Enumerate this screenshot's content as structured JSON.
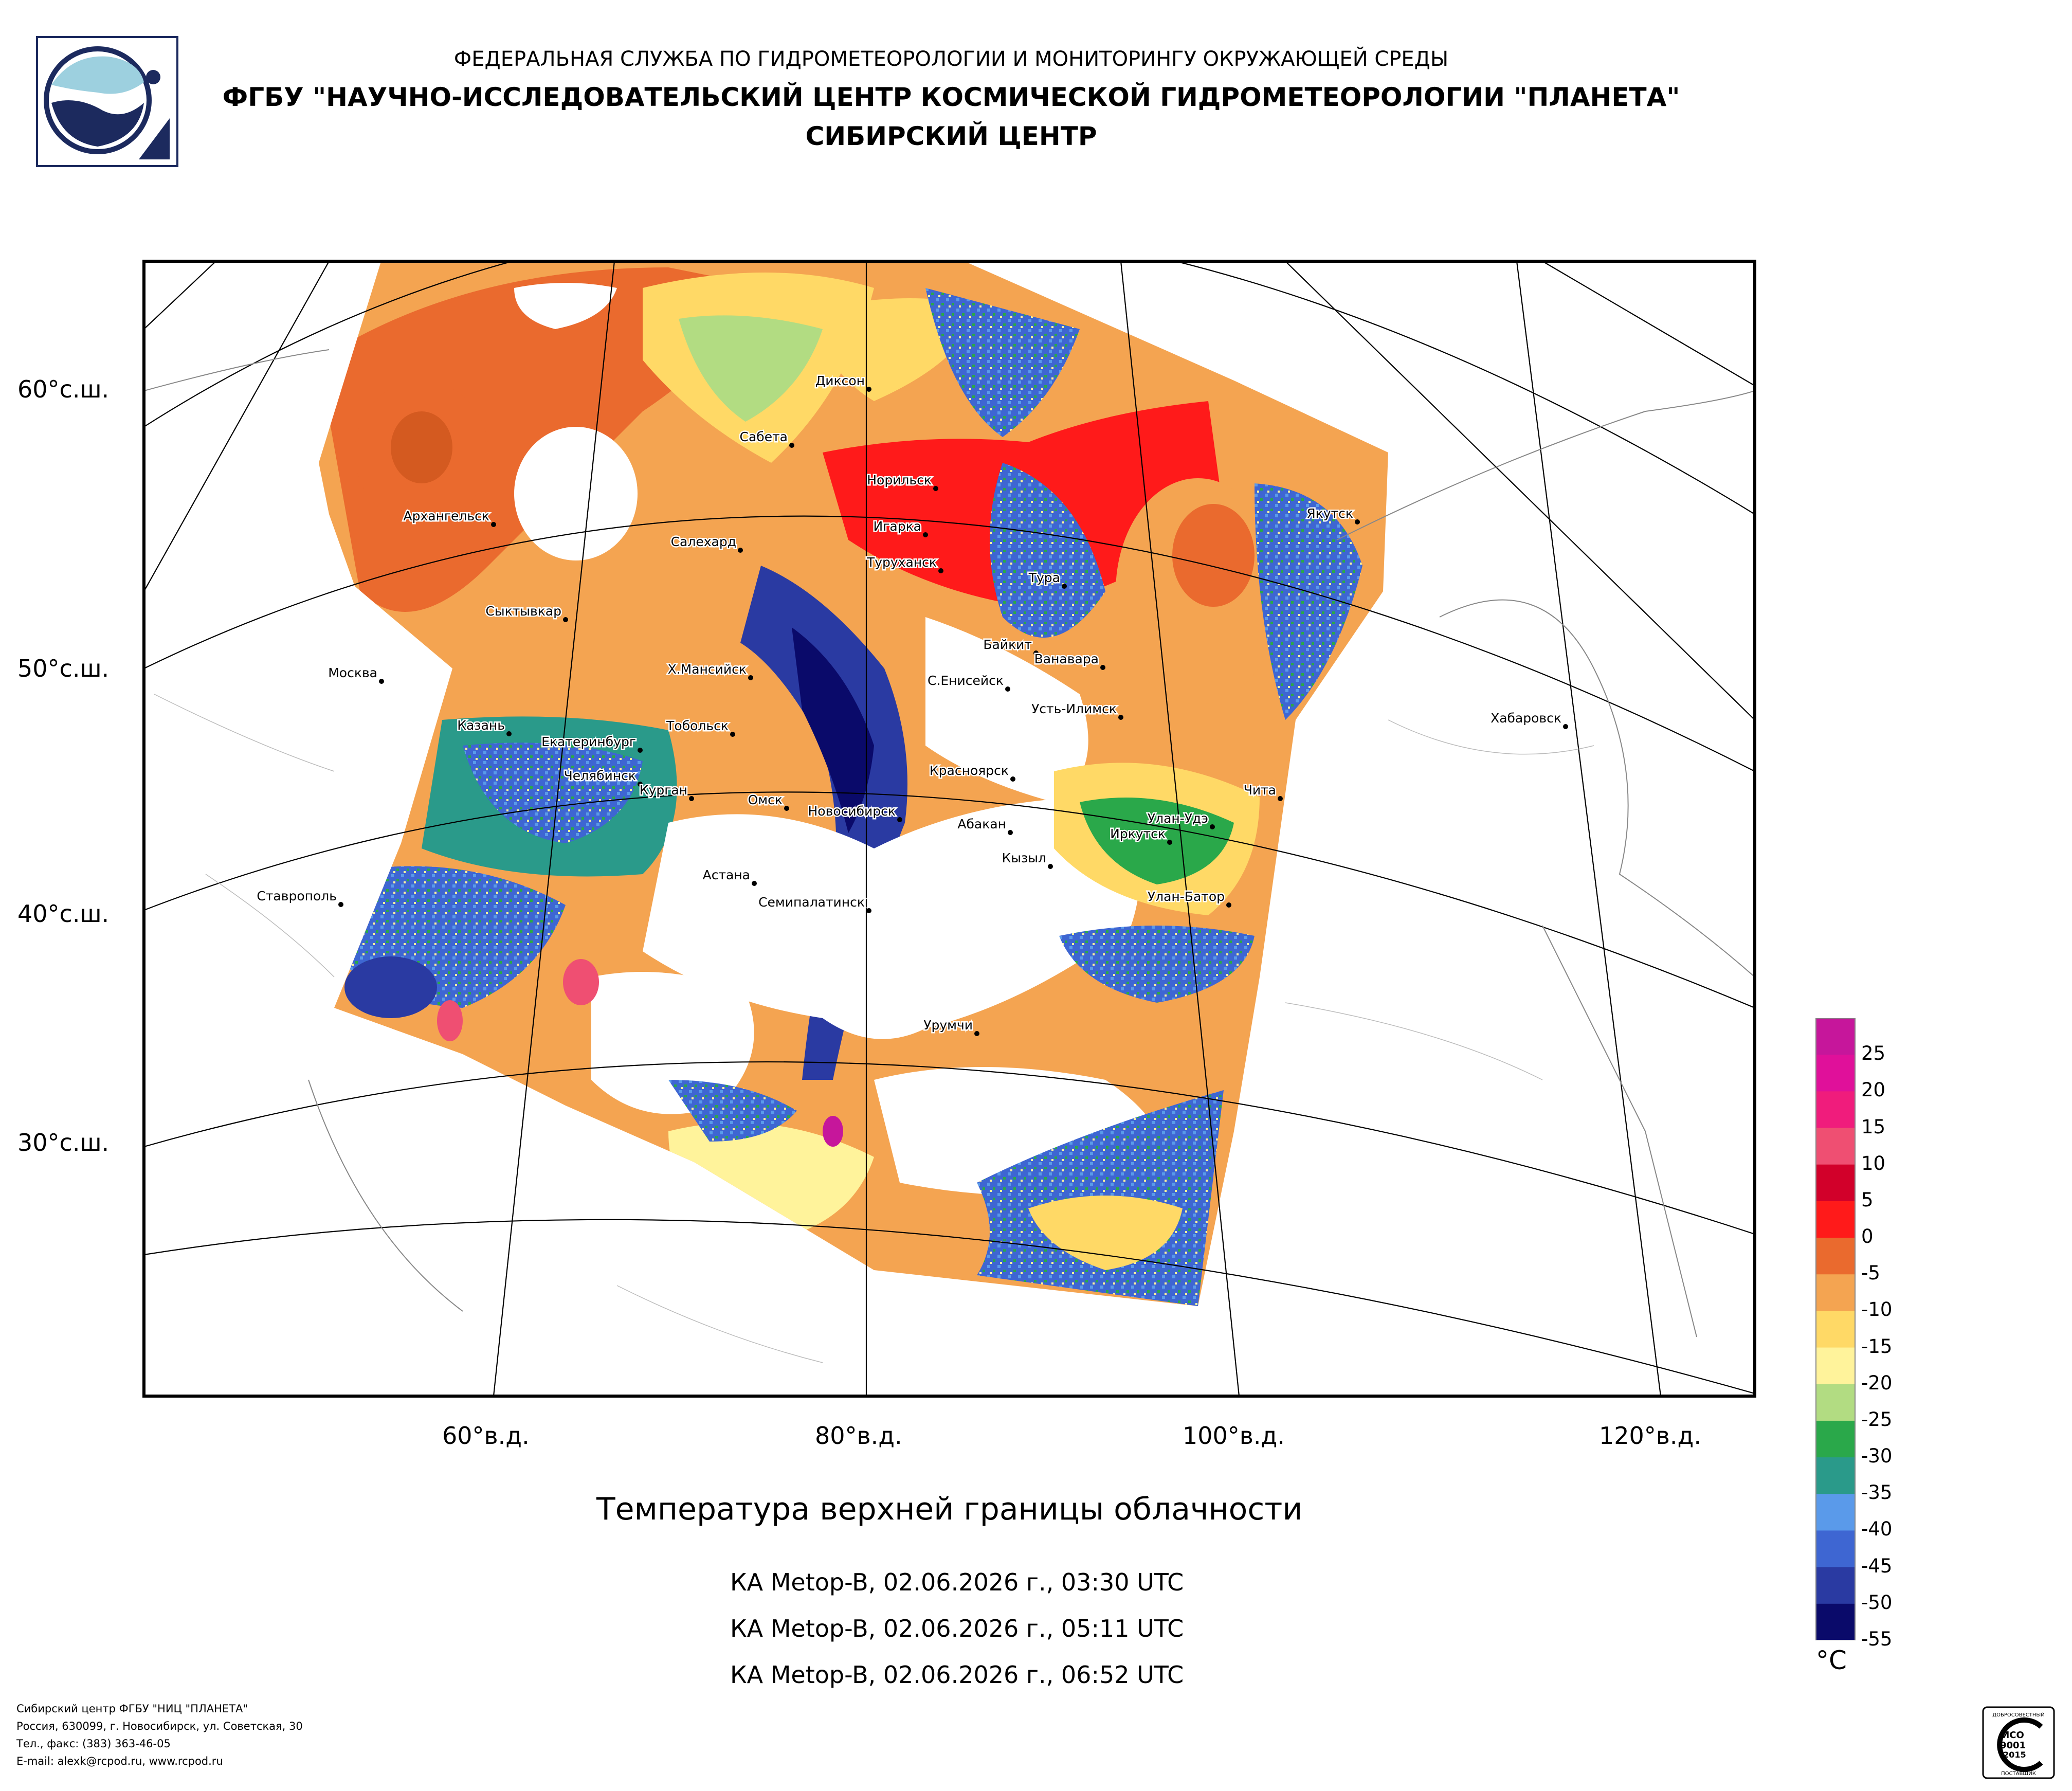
{
  "header": {
    "agency": "ФЕДЕРАЛЬНАЯ СЛУЖБА ПО ГИДРОМЕТЕОРОЛОГИИ И МОНИТОРИНГУ ОКРУЖАЮЩЕЙ СРЕДЫ",
    "institute": "ФГБУ \"НАУЧНО-ИССЛЕДОВАТЕЛЬСКИЙ ЦЕНТР КОСМИЧЕСКОЙ ГИДРОМЕТЕОРОЛОГИИ \"ПЛАНЕТА\"",
    "center": "СИБИРСКИЙ ЦЕНТР"
  },
  "map": {
    "lat_labels": [
      "60°с.ш.",
      "50°с.ш.",
      "40°с.ш.",
      "30°с.ш."
    ],
    "lon_labels": [
      "60°в.д.",
      "80°в.д.",
      "100°в.д.",
      "120°в.д."
    ],
    "cities": [
      "Диксон",
      "Сабета",
      "Норильск",
      "Игарка",
      "Туруханск",
      "Тура",
      "Салехард",
      "Архангельск",
      "Сыктывкар",
      "Якутск",
      "Байкит",
      "Ванавара",
      "С.Енисейск",
      "Усть-Илимск",
      "Х.Мансийск",
      "Москва",
      "Хабаровск",
      "Казань",
      "Екатеринбург",
      "Тобольск",
      "Челябинск",
      "Курган",
      "Омск",
      "Новосибирск",
      "Красноярск",
      "Абакан",
      "Чита",
      "Улан-Удэ",
      "Иркутск",
      "Кызыл",
      "Астана",
      "Семипалатинск",
      "Улан-Батор",
      "Ставрополь",
      "Урумчи"
    ]
  },
  "product": {
    "title": "Температура верхней границы облачности",
    "passes": [
      "КА Metop-B, 02.06.2026 г., 03:30 UTC",
      "КА Metop-B, 02.06.2026 г., 05:11 UTC",
      "КА Metop-B, 02.06.2026 г., 06:52 UTC"
    ]
  },
  "colorbar": {
    "unit": "°C",
    "labels": [
      "25",
      "20",
      "15",
      "10",
      "5",
      "0",
      "-5",
      "-10",
      "-15",
      "-20",
      "-25",
      "-30",
      "-35",
      "-40",
      "-45",
      "-50",
      "-55"
    ],
    "colors": [
      "#c6169b",
      "#e0109a",
      "#f01c7c",
      "#ef4f72",
      "#d2002a",
      "#ff1a1a",
      "#ea6a2e",
      "#f4a451",
      "#ffd966",
      "#fff39b",
      "#b2dc82",
      "#2aa84a",
      "#2a9a8a",
      "#5a9aea",
      "#3e66d2",
      "#2a3aa2",
      "#0a0a6a"
    ]
  },
  "footer": {
    "lines": [
      "Сибирский центр ФГБУ \"НИЦ \"ПЛАНЕТА\"",
      "Россия, 630099, г. Новосибирск, ул. Советская, 30",
      "Тел., факс: (383) 363-46-05",
      "E-mail: alexk@rcpod.ru, www.rcpod.ru"
    ]
  },
  "certificate": {
    "top": "ДОБРОСОВЕСТНЫЙ",
    "iso": "ИСО",
    "num": "9001",
    "year": "-2015",
    "bottom": "ПОСТАВЩИК"
  }
}
